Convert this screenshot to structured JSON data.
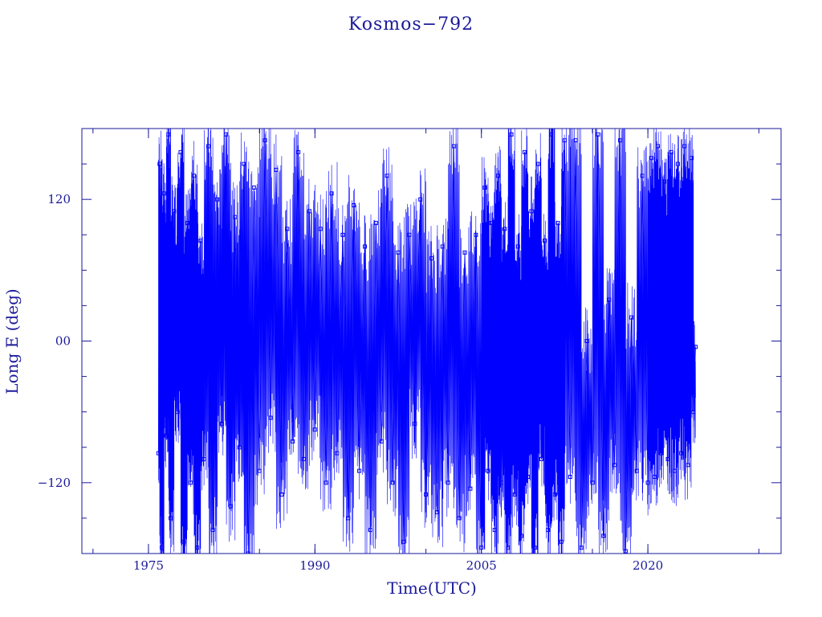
{
  "chart_data": {
    "type": "line",
    "title": "Kosmos−792",
    "xlabel": "Time(UTC)",
    "ylabel": "Long E (deg)",
    "xlim": [
      1969,
      2032
    ],
    "ylim": [
      -180,
      180
    ],
    "x_ticks": [
      {
        "value": 1975,
        "label": "1975"
      },
      {
        "value": 1990,
        "label": "1990"
      },
      {
        "value": 2005,
        "label": "2005"
      },
      {
        "value": 2020,
        "label": "2020"
      }
    ],
    "y_ticks": [
      {
        "value": 120,
        "label": "120"
      },
      {
        "value": 0,
        "label": "00"
      },
      {
        "value": -120,
        "label": "−120"
      }
    ],
    "grid": false,
    "legend": "none",
    "marker": "square",
    "colors": {
      "series": "#0000ff",
      "axis": "#1a1a9a",
      "background": "#ffffff"
    },
    "series": [
      {
        "data_span": [
          1975.9,
          2024.3
        ],
        "points": [
          [
            1975.9,
            -95
          ],
          [
            1976.0,
            150
          ],
          [
            1976.2,
            -175
          ],
          [
            1976.4,
            125
          ],
          [
            1976.6,
            -80
          ],
          [
            1976.8,
            175
          ],
          [
            1977.0,
            -150
          ],
          [
            1977.3,
            110
          ],
          [
            1977.6,
            -60
          ],
          [
            1977.9,
            160
          ],
          [
            1978.2,
            -170
          ],
          [
            1978.5,
            100
          ],
          [
            1978.8,
            -120
          ],
          [
            1979.1,
            140
          ],
          [
            1979.4,
            -175
          ],
          [
            1979.7,
            85
          ],
          [
            1980.0,
            -100
          ],
          [
            1980.4,
            165
          ],
          [
            1980.8,
            -160
          ],
          [
            1981.2,
            120
          ],
          [
            1981.6,
            -70
          ],
          [
            1982.0,
            175
          ],
          [
            1982.4,
            -140
          ],
          [
            1982.8,
            105
          ],
          [
            1983.2,
            -90
          ],
          [
            1983.6,
            150
          ],
          [
            1984.0,
            -180
          ],
          [
            1984.5,
            130
          ],
          [
            1985.0,
            -110
          ],
          [
            1985.5,
            170
          ],
          [
            1986.0,
            -65
          ],
          [
            1986.5,
            145
          ],
          [
            1987.0,
            -130
          ],
          [
            1987.5,
            95
          ],
          [
            1988.0,
            -85
          ],
          [
            1988.5,
            160
          ],
          [
            1989.0,
            -100
          ],
          [
            1989.5,
            110
          ],
          [
            1990.0,
            -75
          ],
          [
            1990.5,
            95
          ],
          [
            1991.0,
            -120
          ],
          [
            1991.5,
            125
          ],
          [
            1992.0,
            -95
          ],
          [
            1992.5,
            90
          ],
          [
            1993.0,
            -150
          ],
          [
            1993.5,
            115
          ],
          [
            1994.0,
            -110
          ],
          [
            1994.5,
            80
          ],
          [
            1995.0,
            -160
          ],
          [
            1995.5,
            100
          ],
          [
            1996.0,
            -85
          ],
          [
            1996.5,
            140
          ],
          [
            1997.0,
            -120
          ],
          [
            1997.5,
            75
          ],
          [
            1998.0,
            -170
          ],
          [
            1998.5,
            90
          ],
          [
            1999.0,
            -70
          ],
          [
            1999.5,
            120
          ],
          [
            2000.0,
            -130
          ],
          [
            2000.5,
            70
          ],
          [
            2001.0,
            -145
          ],
          [
            2001.5,
            80
          ],
          [
            2002.0,
            -120
          ],
          [
            2002.5,
            165
          ],
          [
            2003.0,
            -150
          ],
          [
            2003.5,
            75
          ],
          [
            2004.0,
            -125
          ],
          [
            2004.5,
            90
          ],
          [
            2005.0,
            -175
          ],
          [
            2005.3,
            130
          ],
          [
            2005.6,
            -110
          ],
          [
            2005.9,
            100
          ],
          [
            2006.2,
            -160
          ],
          [
            2006.5,
            140
          ],
          [
            2006.8,
            -120
          ],
          [
            2007.1,
            95
          ],
          [
            2007.4,
            -175
          ],
          [
            2007.7,
            175
          ],
          [
            2008.0,
            -130
          ],
          [
            2008.3,
            80
          ],
          [
            2008.6,
            -165
          ],
          [
            2008.9,
            160
          ],
          [
            2009.2,
            -115
          ],
          [
            2009.5,
            110
          ],
          [
            2009.8,
            -175
          ],
          [
            2010.1,
            150
          ],
          [
            2010.4,
            -100
          ],
          [
            2010.7,
            85
          ],
          [
            2011.0,
            -160
          ],
          [
            2011.3,
            175
          ],
          [
            2011.6,
            -130
          ],
          [
            2011.9,
            100
          ],
          [
            2012.2,
            -170
          ],
          [
            2012.5,
            170
          ],
          [
            2013.0,
            -115
          ],
          [
            2013.5,
            170
          ],
          [
            2014.0,
            -175
          ],
          [
            2014.5,
            0
          ],
          [
            2015.0,
            -120
          ],
          [
            2015.5,
            175
          ],
          [
            2016.0,
            -165
          ],
          [
            2016.5,
            35
          ],
          [
            2017.0,
            -105
          ],
          [
            2017.5,
            170
          ],
          [
            2018.0,
            -178
          ],
          [
            2018.5,
            20
          ],
          [
            2019.0,
            -110
          ],
          [
            2019.5,
            140
          ],
          [
            2020.0,
            -120
          ],
          [
            2020.3,
            155
          ],
          [
            2020.6,
            -115
          ],
          [
            2020.9,
            165
          ],
          [
            2021.2,
            -95
          ],
          [
            2021.5,
            135
          ],
          [
            2021.8,
            -100
          ],
          [
            2022.1,
            160
          ],
          [
            2022.4,
            -110
          ],
          [
            2022.7,
            150
          ],
          [
            2023.0,
            -95
          ],
          [
            2023.3,
            165
          ],
          [
            2023.6,
            -105
          ],
          [
            2023.9,
            155
          ],
          [
            2024.1,
            -60
          ],
          [
            2024.3,
            -5
          ]
        ]
      }
    ]
  }
}
